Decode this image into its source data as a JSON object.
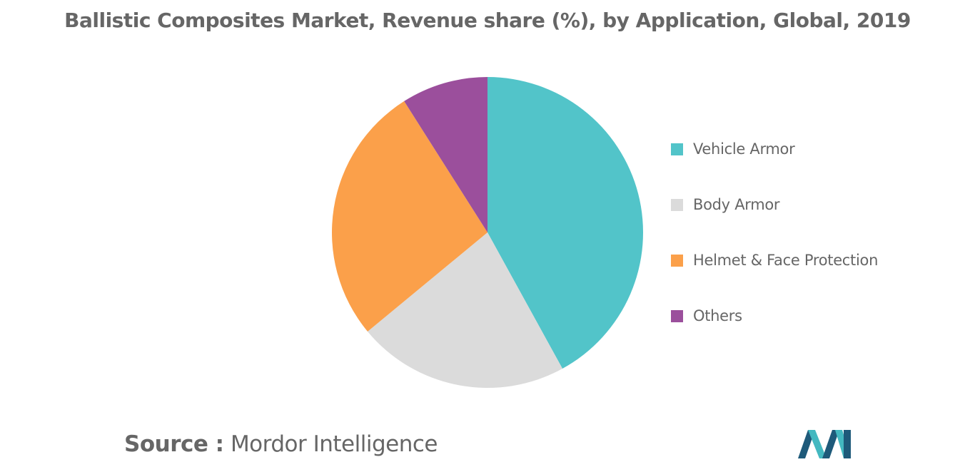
{
  "header": {
    "title": "Ballistic Composites Market, Revenue share (%), by Application, Global, 2019"
  },
  "chart_data": {
    "type": "pie",
    "title": "Ballistic Composites Market, Revenue share (%), by Application, Global, 2019",
    "categories": [
      "Vehicle Armor",
      "Body Armor",
      "Helmet & Face Protection",
      "Others"
    ],
    "values": [
      42,
      22,
      27,
      9
    ],
    "colors": [
      "#52C4C9",
      "#DBDBDB",
      "#FBA04A",
      "#9B4F9C"
    ],
    "start_angle_deg": 0,
    "direction": "clockwise",
    "legend_position": "right",
    "data_labels": false
  },
  "legend": {
    "items": [
      {
        "label": "Vehicle Armor",
        "color": "#52C4C9"
      },
      {
        "label": "Body Armor",
        "color": "#DBDBDB"
      },
      {
        "label": "Helmet & Face Protection",
        "color": "#FBA04A"
      },
      {
        "label": "Others",
        "color": "#9B4F9C"
      }
    ]
  },
  "footer": {
    "source_prefix": "Source :",
    "source_name": "Mordor Intelligence"
  },
  "logo": {
    "icon": "mordor-intelligence-logo-icon",
    "colors": [
      "#1E5A7A",
      "#43B8C0"
    ]
  }
}
